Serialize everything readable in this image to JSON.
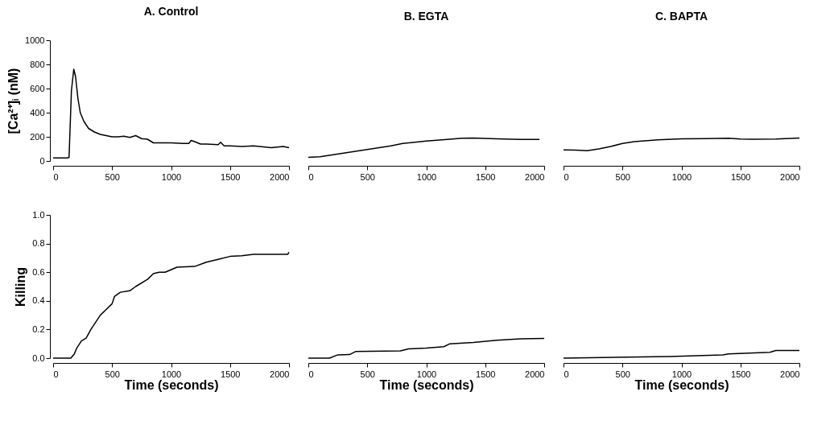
{
  "chart_data": [
    {
      "type": "line",
      "title": "A. Control",
      "ylabel": "[Ca²⁺]ᵢ (nM)",
      "xlim": [
        0,
        2000
      ],
      "xticks": [
        0,
        500,
        1000,
        1500,
        2000
      ],
      "ylim": [
        0,
        1000
      ],
      "yticks": [
        0,
        200,
        400,
        600,
        800,
        1000
      ],
      "grid": false,
      "line_style": "solid",
      "x": [
        0,
        120,
        135,
        155,
        175,
        190,
        210,
        230,
        260,
        300,
        350,
        400,
        450,
        500,
        550,
        600,
        650,
        700,
        750,
        800,
        850,
        900,
        1000,
        1100,
        1150,
        1170,
        1200,
        1250,
        1300,
        1400,
        1420,
        1450,
        1500,
        1600,
        1700,
        1800,
        1850,
        1900,
        1950,
        2000
      ],
      "series": [
        {
          "color": "#000000",
          "values": [
            25,
            25,
            30,
            580,
            760,
            700,
            520,
            400,
            330,
            270,
            240,
            220,
            210,
            200,
            200,
            205,
            195,
            210,
            185,
            180,
            150,
            150,
            150,
            145,
            145,
            170,
            160,
            140,
            140,
            135,
            155,
            125,
            125,
            120,
            125,
            115,
            110,
            115,
            120,
            110
          ]
        }
      ]
    },
    {
      "type": "line",
      "title": "B.  EGTA",
      "tick_labels": "x",
      "xlim": [
        0,
        2000
      ],
      "xticks": [
        0,
        500,
        1000,
        1500,
        2000
      ],
      "ylim": [
        0,
        1000
      ],
      "grid": false,
      "line_style": "solid",
      "x": [
        0,
        100,
        300,
        500,
        700,
        800,
        1000,
        1200,
        1300,
        1400,
        1600,
        1800,
        1960
      ],
      "series": [
        {
          "color": "#000000",
          "values": [
            30,
            35,
            65,
            95,
            125,
            145,
            165,
            180,
            188,
            190,
            183,
            178,
            178
          ]
        }
      ]
    },
    {
      "type": "line",
      "title": "C.  BAPTA",
      "tick_labels": "x",
      "xlim": [
        0,
        2000
      ],
      "xticks": [
        0,
        500,
        1000,
        1500,
        2000
      ],
      "ylim": [
        0,
        1000
      ],
      "grid": false,
      "line_style": "solid",
      "x": [
        0,
        100,
        200,
        300,
        400,
        500,
        600,
        800,
        1000,
        1200,
        1400,
        1500,
        1600,
        1800,
        2000
      ],
      "series": [
        {
          "color": "#000000",
          "values": [
            92,
            90,
            85,
            100,
            120,
            145,
            160,
            175,
            183,
            185,
            188,
            182,
            180,
            182,
            190
          ]
        }
      ]
    },
    {
      "type": "line",
      "xlabel": "Time (seconds)",
      "ylabel": "Killing",
      "xlim": [
        0,
        2000
      ],
      "xticks": [
        0,
        500,
        1000,
        1500,
        2000
      ],
      "ylim": [
        0,
        1
      ],
      "yticks": [
        {
          "value": 0,
          "label": "0.0"
        },
        {
          "value": 0.2,
          "label": "0.2"
        },
        {
          "value": 0.4,
          "label": "0.4"
        },
        {
          "value": 0.6,
          "label": "0.6"
        },
        {
          "value": 0.8,
          "label": "0.8"
        },
        {
          "value": 1,
          "label": "1.0"
        }
      ],
      "grid": false,
      "line_style": "solid",
      "x": [
        0,
        150,
        180,
        200,
        240,
        280,
        320,
        400,
        450,
        500,
        520,
        570,
        650,
        700,
        800,
        850,
        900,
        950,
        1050,
        1200,
        1300,
        1400,
        1500,
        1600,
        1700,
        1990,
        2000
      ],
      "series": [
        {
          "color": "#000000",
          "values": [
            0,
            0,
            0.03,
            0.07,
            0.12,
            0.14,
            0.2,
            0.3,
            0.34,
            0.38,
            0.43,
            0.46,
            0.47,
            0.5,
            0.55,
            0.59,
            0.6,
            0.6,
            0.635,
            0.64,
            0.67,
            0.69,
            0.71,
            0.715,
            0.725,
            0.725,
            0.74
          ]
        }
      ]
    },
    {
      "type": "line",
      "xlabel": "Time (seconds)",
      "tick_labels": "x",
      "xlim": [
        0,
        2000
      ],
      "xticks": [
        0,
        500,
        1000,
        1500,
        2000
      ],
      "ylim": [
        0,
        1
      ],
      "grid": false,
      "line_style": "solid",
      "x": [
        0,
        180,
        250,
        350,
        400,
        780,
        850,
        1000,
        1150,
        1200,
        1400,
        1600,
        1800,
        2000
      ],
      "series": [
        {
          "color": "#000000",
          "values": [
            0,
            0,
            0.023,
            0.025,
            0.046,
            0.05,
            0.065,
            0.07,
            0.08,
            0.1,
            0.11,
            0.125,
            0.135,
            0.137
          ]
        }
      ]
    },
    {
      "type": "line",
      "xlabel": "Time (seconds)",
      "tick_labels": "x",
      "xlim": [
        0,
        2000
      ],
      "xticks": [
        0,
        500,
        1000,
        1500,
        2000
      ],
      "ylim": [
        0,
        1
      ],
      "grid": false,
      "line_style": "solid",
      "x": [
        0,
        900,
        1350,
        1400,
        1750,
        1800,
        2000
      ],
      "series": [
        {
          "color": "#000000",
          "values": [
            0,
            0.011,
            0.023,
            0.03,
            0.041,
            0.053,
            0.053
          ]
        }
      ]
    }
  ]
}
